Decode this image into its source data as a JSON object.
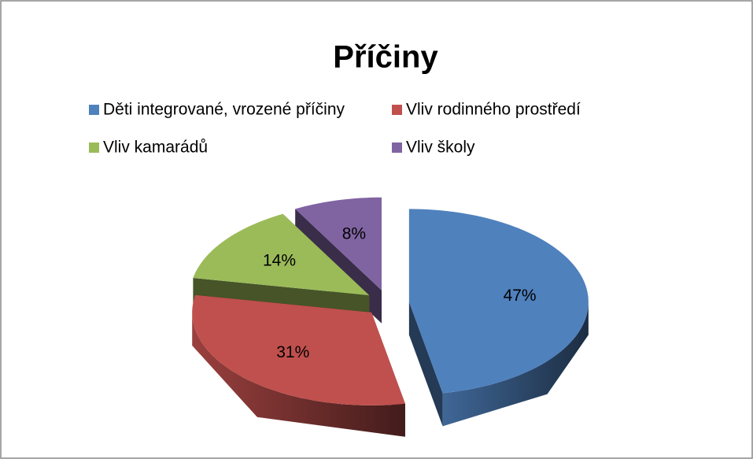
{
  "chart_data": {
    "type": "pie",
    "title": "Příčiny",
    "categories": [
      "Děti integrované, vrozené příčiny",
      "Vliv rodinného prostředí",
      "Vliv kamarádů",
      "Vliv školy"
    ],
    "values": [
      47,
      31,
      14,
      8
    ],
    "value_labels": [
      "47%",
      "31%",
      "14%",
      "8%"
    ],
    "colors": [
      "#4f81bd",
      "#c0504d",
      "#9bbb59",
      "#8064a2"
    ],
    "legend": "top"
  }
}
